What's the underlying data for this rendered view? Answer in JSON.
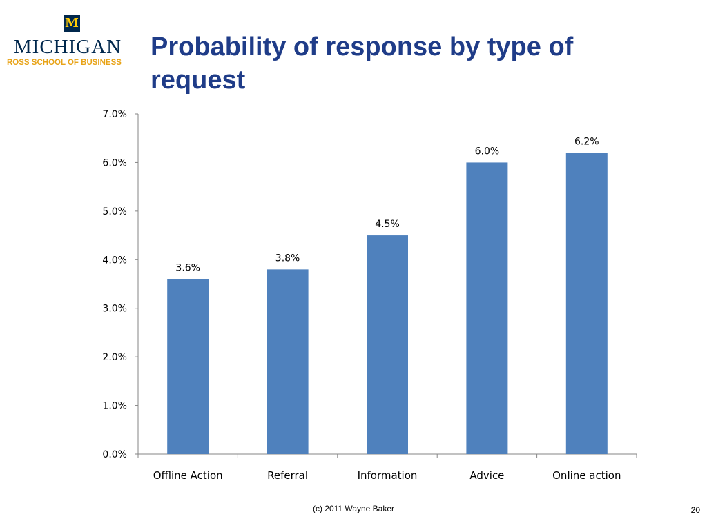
{
  "logo": {
    "mark": "M",
    "name": "MICHIGAN",
    "subtitle": "ROSS SCHOOL OF BUSINESS"
  },
  "slide": {
    "title": "Probability of response by type of request",
    "footer": "(c) 2011 Wayne Baker",
    "page_number": "20"
  },
  "colors": {
    "bar": "#4f81bd",
    "title": "#1f3c88",
    "logo_blue": "#00274c",
    "logo_maize": "#ffcb05"
  },
  "chart_data": {
    "type": "bar",
    "title": "",
    "xlabel": "",
    "ylabel": "",
    "categories": [
      "Offline Action",
      "Referral",
      "Information",
      "Advice",
      "Online action"
    ],
    "values": [
      3.6,
      3.8,
      4.5,
      6.0,
      6.2
    ],
    "data_labels": [
      "3.6%",
      "3.8%",
      "4.5%",
      "6.0%",
      "6.2%"
    ],
    "ylim": [
      0,
      7
    ],
    "yticks": [
      0,
      1,
      2,
      3,
      4,
      5,
      6,
      7
    ],
    "ytick_labels": [
      "0.0%",
      "1.0%",
      "2.0%",
      "3.0%",
      "4.0%",
      "5.0%",
      "6.0%",
      "7.0%"
    ],
    "grid": false,
    "legend": "none"
  }
}
